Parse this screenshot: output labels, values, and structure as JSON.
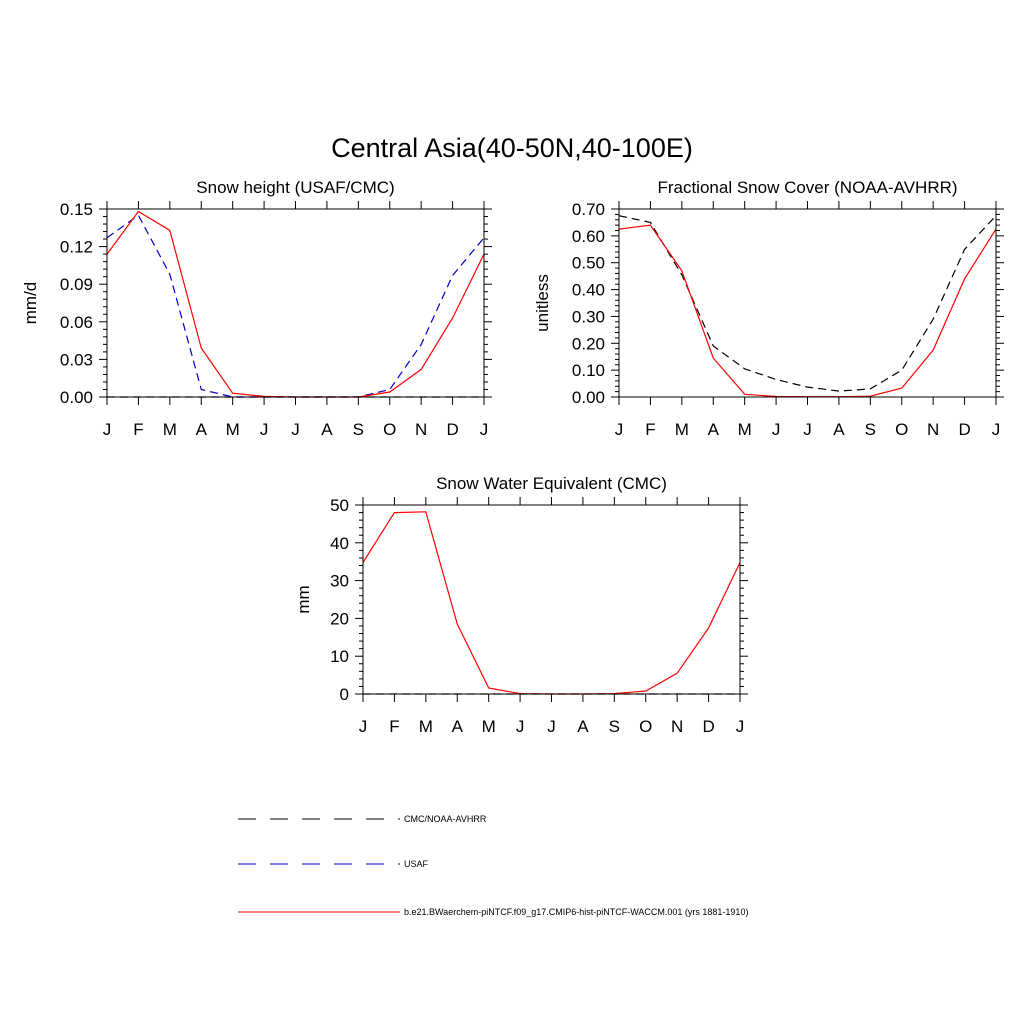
{
  "figure": {
    "title": "Central Asia(40-50N,40-100E)",
    "colors": {
      "model": "#ff0000",
      "usaf": "#0000cc",
      "obs": "#000000"
    }
  },
  "legend": {
    "placement": "bottom-center",
    "items": [
      {
        "label": "CMC/NOAA-AVHRR",
        "style": "dashed",
        "color": "#000000"
      },
      {
        "label": "USAF",
        "style": "dashed",
        "color": "#0000cc"
      },
      {
        "label": "b.e21.BWaerchem-piNTCF.f09_g17.CMIP6-hist-piNTCF-WACCM.001 (yrs 1881-1910)",
        "style": "solid",
        "color": "#ff0000"
      }
    ]
  },
  "chart_data": [
    {
      "type": "line",
      "title": "Snow height (USAF/CMC)",
      "ylabel": "mm/d",
      "xlabel": "",
      "categories": [
        "J",
        "F",
        "M",
        "A",
        "M",
        "J",
        "J",
        "A",
        "S",
        "O",
        "N",
        "D",
        "J"
      ],
      "ylim": [
        0,
        0.15
      ],
      "yticks": [
        "0.00",
        "0.03",
        "0.06",
        "0.09",
        "0.12",
        "0.15"
      ],
      "series": [
        {
          "name": "CMC/NOAA-AVHRR",
          "color": "#000000",
          "dash": true,
          "values": [
            0,
            0,
            0,
            0,
            0,
            0,
            0,
            0,
            0,
            0,
            0,
            0,
            0
          ]
        },
        {
          "name": "USAF",
          "color": "#0000cc",
          "dash": true,
          "values": [
            0.127,
            0.145,
            0.098,
            0.006,
            0.0,
            0.0,
            0.0,
            0.0,
            0.0,
            0.006,
            0.042,
            0.097,
            0.127
          ]
        },
        {
          "name": "b.e21.BWaerchem-piNTCF.f09_g17.CMIP6-hist-piNTCF-WACCM.001 (yrs 1881-1910)",
          "color": "#ff0000",
          "dash": false,
          "values": [
            0.114,
            0.148,
            0.133,
            0.039,
            0.003,
            0.0005,
            0.0,
            0.0,
            0.0,
            0.004,
            0.022,
            0.063,
            0.114
          ]
        }
      ]
    },
    {
      "type": "line",
      "title": "Fractional Snow Cover (NOAA-AVHRR)",
      "ylabel": "unitless",
      "xlabel": "",
      "categories": [
        "J",
        "F",
        "M",
        "A",
        "M",
        "J",
        "J",
        "A",
        "S",
        "O",
        "N",
        "D",
        "J"
      ],
      "ylim": [
        0,
        0.7
      ],
      "yticks": [
        "0.00",
        "0.10",
        "0.20",
        "0.30",
        "0.40",
        "0.50",
        "0.60",
        "0.70"
      ],
      "series": [
        {
          "name": "CMC/NOAA-AVHRR",
          "color": "#000000",
          "dash": true,
          "values": [
            0.675,
            0.65,
            0.455,
            0.19,
            0.105,
            0.065,
            0.037,
            0.022,
            0.03,
            0.1,
            0.29,
            0.55,
            0.675
          ]
        },
        {
          "name": "b.e21.BWaerchem-piNTCF.f09_g17.CMIP6-hist-piNTCF-WACCM.001 (yrs 1881-1910)",
          "color": "#ff0000",
          "dash": false,
          "values": [
            0.625,
            0.64,
            0.47,
            0.145,
            0.01,
            0.002,
            0.001,
            0.001,
            0.003,
            0.033,
            0.175,
            0.44,
            0.625
          ]
        }
      ]
    },
    {
      "type": "line",
      "title": "Snow Water Equivalent (CMC)",
      "ylabel": "mm",
      "xlabel": "",
      "categories": [
        "J",
        "F",
        "M",
        "A",
        "M",
        "J",
        "J",
        "A",
        "S",
        "O",
        "N",
        "D",
        "J"
      ],
      "ylim": [
        0,
        50
      ],
      "yticks": [
        "0",
        "10",
        "20",
        "30",
        "40",
        "50"
      ],
      "series": [
        {
          "name": "CMC/NOAA-AVHRR",
          "color": "#000000",
          "dash": true,
          "values": [
            0,
            0,
            0,
            0,
            0,
            0,
            0,
            0,
            0,
            0,
            0,
            0,
            0
          ]
        },
        {
          "name": "b.e21.BWaerchem-piNTCF.f09_g17.CMIP6-hist-piNTCF-WACCM.001 (yrs 1881-1910)",
          "color": "#ff0000",
          "dash": false,
          "values": [
            34.8,
            48.0,
            48.2,
            18.5,
            1.6,
            0.1,
            0.0,
            0.0,
            0.1,
            0.8,
            5.5,
            17.5,
            34.8
          ]
        }
      ]
    }
  ]
}
